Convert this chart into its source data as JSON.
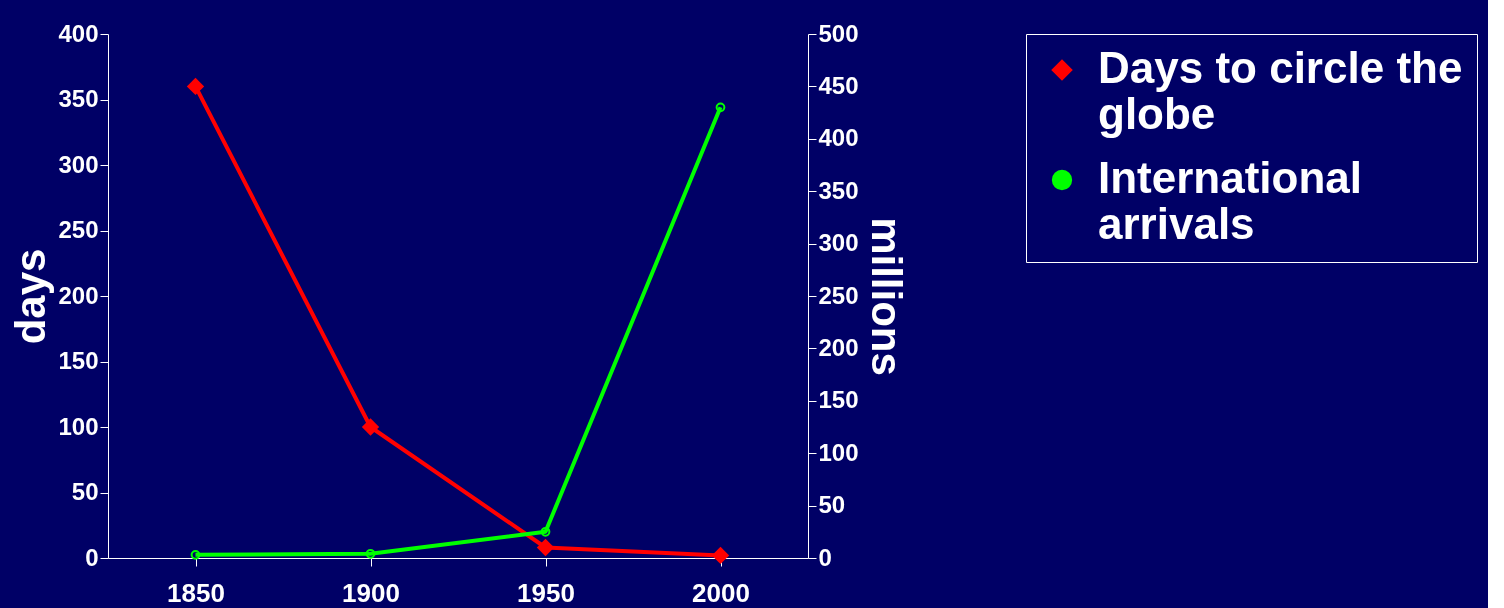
{
  "chart_data": {
    "type": "line",
    "categories": [
      "1850",
      "1900",
      "1950",
      "2000"
    ],
    "series": [
      {
        "name": "Days to circle the globe",
        "color": "#ff0000",
        "marker": "diamond",
        "values": [
          360,
          100,
          8,
          2
        ]
      },
      {
        "name": "International arrivals",
        "color": "#00ff00",
        "marker": "circle",
        "axis": "y2",
        "values": [
          3,
          4,
          25,
          430
        ]
      }
    ],
    "ylabel": "days",
    "y2label": "millions",
    "ylim": [
      0,
      400
    ],
    "yticks": [
      0,
      50,
      100,
      150,
      200,
      250,
      300,
      350,
      400
    ],
    "y2lim": [
      0,
      500
    ],
    "y2ticks": [
      0,
      50,
      100,
      150,
      200,
      250,
      300,
      350,
      400,
      450,
      500
    ],
    "legend": "right",
    "grid": false
  }
}
